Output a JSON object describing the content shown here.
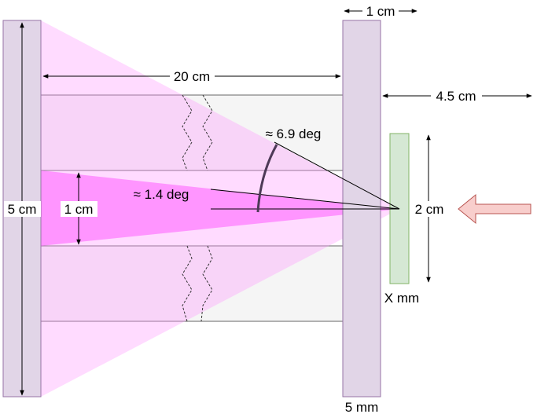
{
  "labels": {
    "gap_length": "20 cm",
    "plate_width": "1 cm",
    "detector_distance": "4.5 cm",
    "wide_angle": "≈ 6.9 deg",
    "narrow_angle": "≈ 1.4 deg",
    "source_height": "5 cm",
    "channel_height": "1 cm",
    "detector_height": "2 cm",
    "detector_thickness": "X mm",
    "plate_thickness": "5 mm"
  },
  "colors": {
    "plate_fill": "#e1d5e7",
    "plate_stroke": "#9673a6",
    "detector_fill": "#d5e8d4",
    "detector_stroke": "#82b366",
    "wide_cone": "#ff99ff",
    "narrow_cone": "#ff66ff",
    "channel_fill": "#f5f5f5",
    "channel_stroke": "#666666",
    "arrow_fill": "#f8cecc",
    "arrow_stroke": "#b85450",
    "arc_stroke": "#4d3a57"
  }
}
